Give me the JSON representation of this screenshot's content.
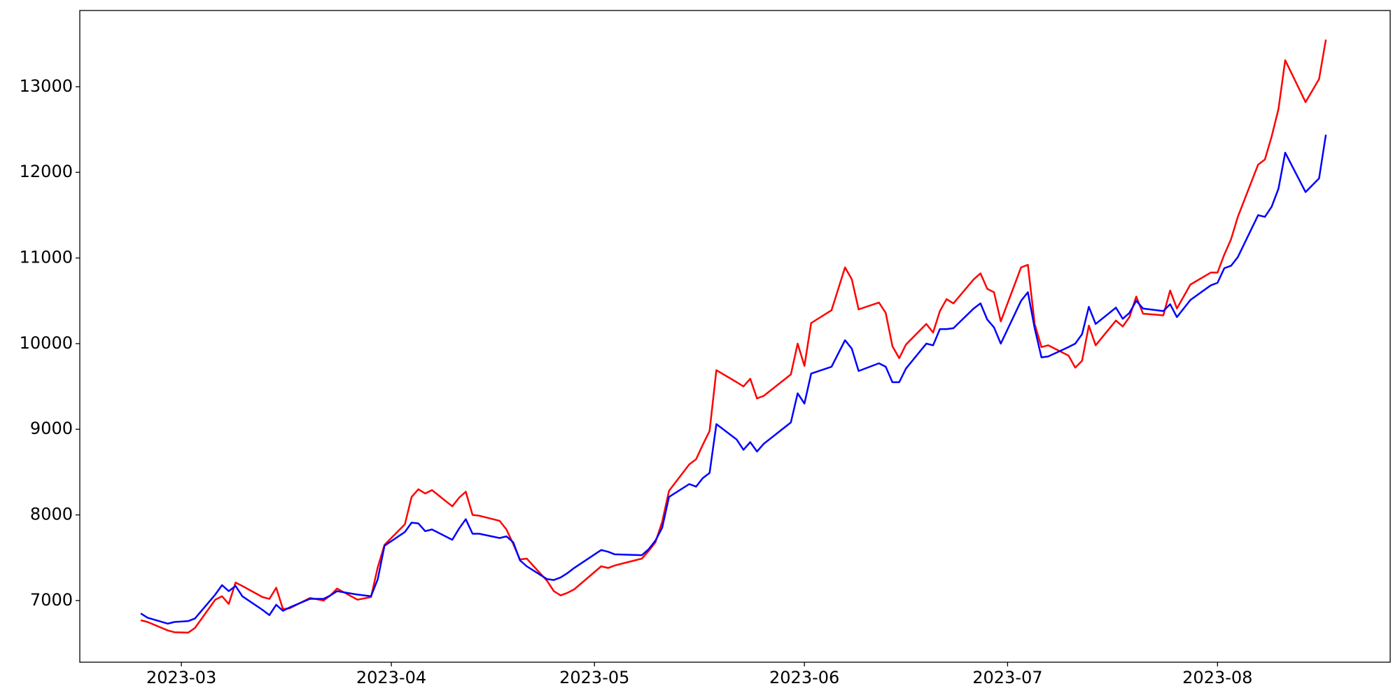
{
  "chart_data": {
    "type": "line",
    "x": [
      53,
      54,
      57,
      58,
      60,
      61,
      64,
      65,
      66,
      67,
      68,
      71,
      72,
      73,
      74,
      75,
      78,
      80,
      81,
      82,
      85,
      87,
      88,
      89,
      92,
      93,
      94,
      95,
      96,
      99,
      100,
      101,
      102,
      103,
      106,
      107,
      108,
      109,
      110,
      113,
      114,
      115,
      116,
      117,
      121,
      122,
      123,
      127,
      128,
      129,
      130,
      131,
      134,
      135,
      136,
      137,
      138,
      141,
      142,
      143,
      144,
      145,
      149,
      150,
      151,
      152,
      155,
      157,
      158,
      159,
      162,
      163,
      164,
      165,
      166,
      169,
      170,
      171,
      172,
      173,
      176,
      177,
      178,
      179,
      180,
      183,
      184,
      185,
      186,
      187,
      190,
      191,
      192,
      193,
      194,
      197,
      198,
      199,
      200,
      201,
      204,
      205,
      206,
      208,
      211,
      212,
      213,
      214,
      215,
      218,
      219,
      220,
      221,
      222,
      225,
      227,
      228
    ],
    "series": [
      {
        "color": "#ff0000",
        "values": [
          6770,
          6750,
          6650,
          6630,
          6625,
          6680,
          7010,
          7050,
          6960,
          7210,
          7170,
          7040,
          7020,
          7150,
          6900,
          6910,
          7030,
          7000,
          7060,
          7140,
          7010,
          7040,
          7390,
          7650,
          7890,
          8210,
          8300,
          8250,
          8290,
          8100,
          8200,
          8270,
          8000,
          7990,
          7930,
          7830,
          7660,
          7480,
          7490,
          7230,
          7110,
          7060,
          7090,
          7130,
          7400,
          7380,
          7410,
          7490,
          7580,
          7680,
          7920,
          8280,
          8590,
          8650,
          8820,
          8980,
          9690,
          9550,
          9500,
          9590,
          9360,
          9390,
          9640,
          10000,
          9740,
          10240,
          10390,
          10890,
          10750,
          10400,
          10480,
          10360,
          9970,
          9830,
          9990,
          10230,
          10130,
          10380,
          10520,
          10470,
          10750,
          10820,
          10640,
          10600,
          10260,
          10890,
          10920,
          10230,
          9960,
          9980,
          9860,
          9720,
          9800,
          10210,
          9980,
          10270,
          10200,
          10310,
          10550,
          10350,
          10330,
          10620,
          10410,
          10690,
          10830,
          10830,
          11040,
          11220,
          11480,
          12090,
          12150,
          12420,
          12740,
          13310,
          12820,
          13090,
          13550
        ]
      },
      {
        "color": "#0000ff",
        "values": [
          6850,
          6800,
          6730,
          6750,
          6760,
          6790,
          7070,
          7180,
          7110,
          7170,
          7050,
          6890,
          6830,
          6950,
          6880,
          6920,
          7020,
          7020,
          7060,
          7110,
          7070,
          7050,
          7250,
          7640,
          7800,
          7910,
          7900,
          7810,
          7830,
          7710,
          7840,
          7950,
          7780,
          7780,
          7730,
          7750,
          7680,
          7470,
          7400,
          7250,
          7240,
          7270,
          7320,
          7380,
          7590,
          7570,
          7540,
          7530,
          7600,
          7700,
          7850,
          8210,
          8360,
          8330,
          8430,
          8490,
          9060,
          8880,
          8760,
          8850,
          8740,
          8830,
          9080,
          9420,
          9300,
          9650,
          9730,
          10040,
          9940,
          9680,
          9770,
          9730,
          9550,
          9550,
          9710,
          10000,
          9980,
          10170,
          10170,
          10180,
          10410,
          10470,
          10280,
          10190,
          10000,
          10500,
          10600,
          10180,
          9840,
          9850,
          9960,
          10000,
          10110,
          10430,
          10230,
          10420,
          10290,
          10360,
          10500,
          10410,
          10380,
          10460,
          10310,
          10510,
          10680,
          10710,
          10880,
          10910,
          11010,
          11500,
          11480,
          11600,
          11810,
          12230,
          11770,
          11930,
          12440
        ]
      }
    ],
    "xlim": [
      44,
      237.5
    ],
    "xticks": [
      {
        "value": 59,
        "label": "2023-03"
      },
      {
        "value": 90,
        "label": "2023-04"
      },
      {
        "value": 120,
        "label": "2023-05"
      },
      {
        "value": 151,
        "label": "2023-06"
      },
      {
        "value": 181,
        "label": "2023-07"
      },
      {
        "value": 212,
        "label": "2023-08"
      }
    ],
    "ylim": [
      6280,
      13890
    ],
    "yticks": [
      7000,
      8000,
      9000,
      10000,
      11000,
      12000,
      13000
    ]
  }
}
